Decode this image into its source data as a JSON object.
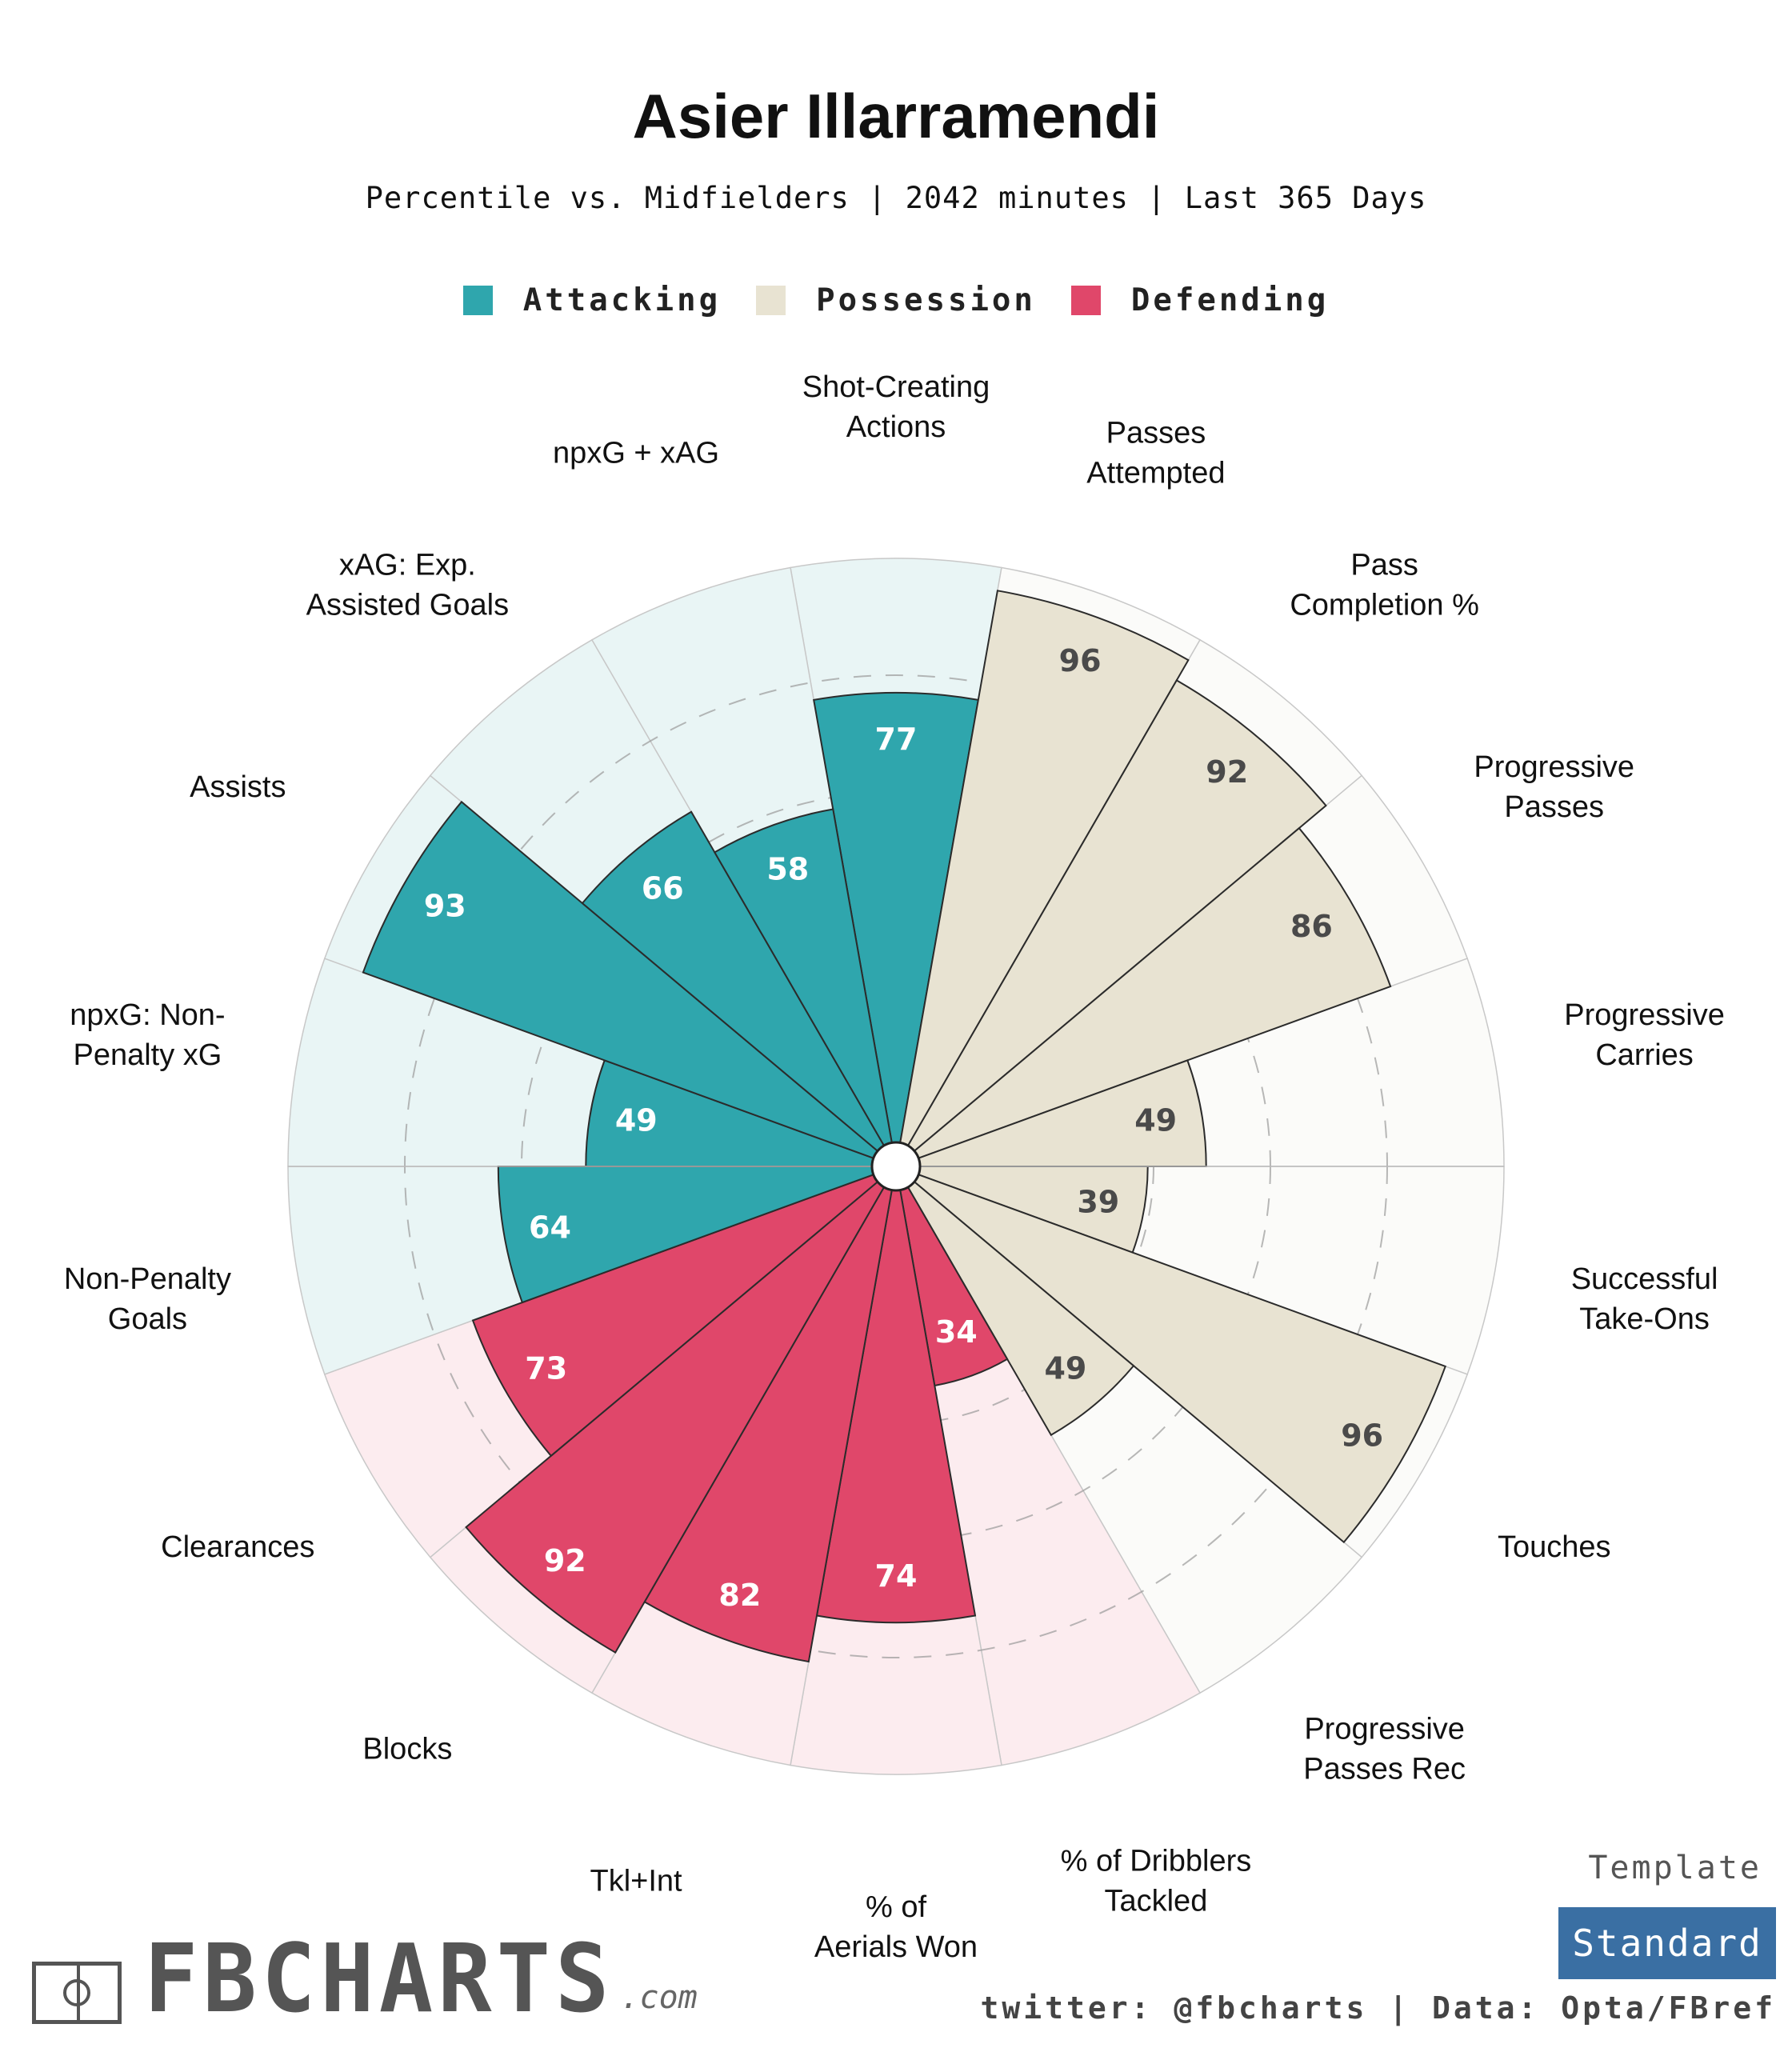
{
  "title": "Asier Illarramendi",
  "subtitle": "Percentile vs. Midfielders | 2042 minutes | Last 365 Days",
  "legend": [
    {
      "label": "Attacking",
      "color": "#2fa6ad"
    },
    {
      "label": "Possession",
      "color": "#e8e3d2"
    },
    {
      "label": "Defending",
      "color": "#e0476a"
    }
  ],
  "colors": {
    "Attacking": {
      "fill": "#2fa6ad",
      "bg": "#e9f5f5",
      "text": "#ffffff"
    },
    "Possession": {
      "fill": "#e8e3d2",
      "bg": "#fbfbf9",
      "text": "#4a4a4a"
    },
    "Defending": {
      "fill": "#e0476a",
      "bg": "#fcecef",
      "text": "#ffffff"
    }
  },
  "chart_data": {
    "type": "polar-bar",
    "categories": [
      "Shot-Creating Actions",
      "Passes Attempted",
      "Pass Completion %",
      "Progressive Passes",
      "Progressive Carries",
      "Successful Take-Ons",
      "Touches",
      "Progressive Passes Rec",
      "% of Dribblers Tackled",
      "% of Aerials Won",
      "Tkl+Int",
      "Blocks",
      "Clearances",
      "Non-Penalty Goals",
      "npxG: Non-Penalty xG",
      "Assists",
      "xAG: Exp. Assisted Goals",
      "npxG + xAG"
    ],
    "groups": [
      "Attacking",
      "Possession",
      "Possession",
      "Possession",
      "Possession",
      "Possession",
      "Possession",
      "Possession",
      "Defending",
      "Defending",
      "Defending",
      "Defending",
      "Defending",
      "Attacking",
      "Attacking",
      "Attacking",
      "Attacking",
      "Attacking"
    ],
    "values": [
      77,
      96,
      92,
      86,
      49,
      39,
      96,
      49,
      34,
      74,
      82,
      92,
      73,
      64,
      49,
      93,
      66,
      58
    ],
    "ylim": [
      0,
      100
    ]
  },
  "footer": {
    "template_label": "Template",
    "template_value": "Standard",
    "credit": "twitter: @fbcharts | Data: Opta/FBref",
    "logo_text": "FBCHARTS",
    "logo_suffix": ".com"
  }
}
